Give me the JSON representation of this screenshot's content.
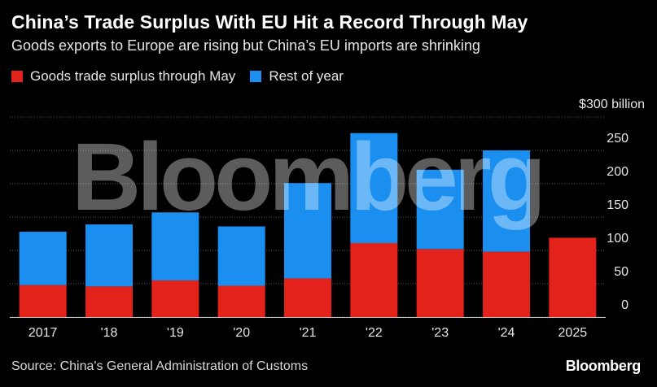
{
  "header": {
    "title": "China’s Trade Surplus With EU Hit a Record Through May",
    "subtitle": "Goods exports to Europe are rising but China’s EU imports are shrinking"
  },
  "legend": {
    "items": [
      {
        "label": "Goods trade surplus through May",
        "color": "#e3231b"
      },
      {
        "label": "Rest of year",
        "color": "#1a8ff0"
      }
    ]
  },
  "watermark": "Bloomberg",
  "footer": {
    "source": "Source: China's General Administration of Customs",
    "brand": "Bloomberg"
  },
  "chart_data": {
    "type": "bar",
    "stacked": true,
    "categories": [
      "2017",
      "'18",
      "'19",
      "'20",
      "'21",
      "'22",
      "'23",
      "'24",
      "2025"
    ],
    "series": [
      {
        "name": "Goods trade surplus through May",
        "color": "#e3231b",
        "values": [
          48,
          46,
          55,
          47,
          58,
          111,
          102,
          98,
          119
        ]
      },
      {
        "name": "Rest of year",
        "color": "#1a8ff0",
        "values": [
          80,
          93,
          102,
          89,
          143,
          165,
          119,
          152,
          0
        ]
      }
    ],
    "ylim": [
      0,
      300
    ],
    "yticks": [
      {
        "value": 0,
        "label": "0"
      },
      {
        "value": 50,
        "label": "50"
      },
      {
        "value": 100,
        "label": "100"
      },
      {
        "value": 150,
        "label": "150"
      },
      {
        "value": 200,
        "label": "200"
      },
      {
        "value": 250,
        "label": "250"
      },
      {
        "value": 300,
        "label": "$300 billion"
      }
    ],
    "grid": true,
    "yaxis_position": "right",
    "legend_position": "top-left"
  }
}
